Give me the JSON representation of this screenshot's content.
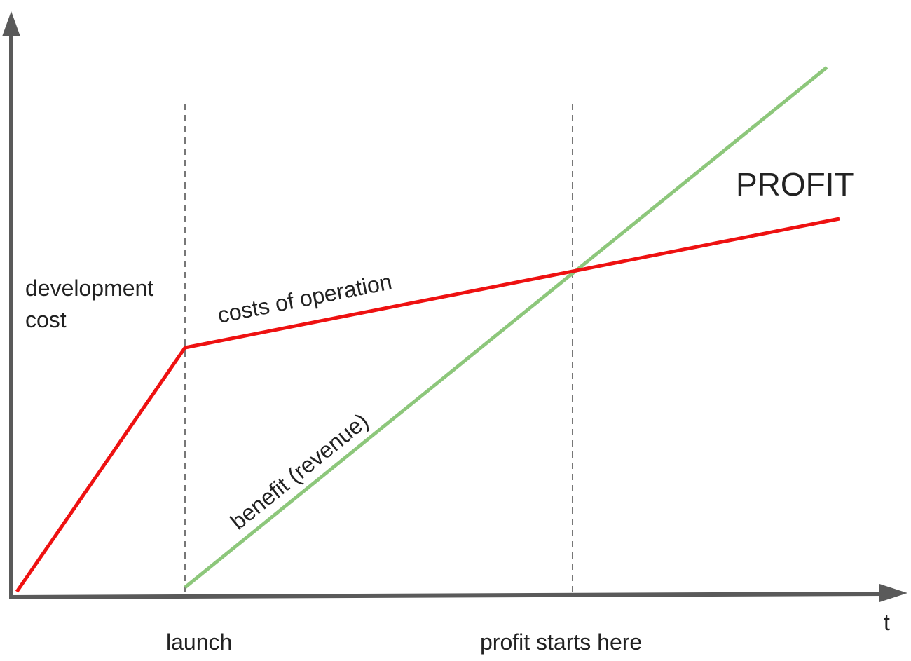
{
  "diagram": {
    "labels": {
      "development_cost_line1": "development",
      "development_cost_line2": "cost",
      "costs_of_operation": "costs of operation",
      "benefit": "benefit (revenue)",
      "profit": "PROFIT",
      "launch": "launch",
      "profit_starts": "profit starts here",
      "t_axis": "t"
    },
    "colors": {
      "axis": "#5a5a5a",
      "cost_line": "#ee1111",
      "benefit_line": "#8dc77b",
      "guide_line": "#777777",
      "text": "#222222"
    }
  }
}
